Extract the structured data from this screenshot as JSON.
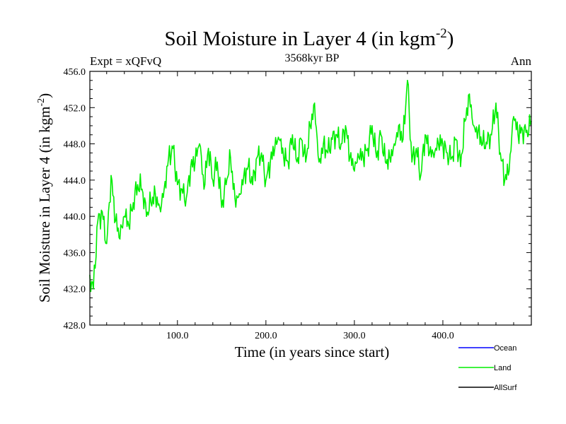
{
  "chart_data": {
    "type": "line",
    "title_main": "Soil Moisture in Layer 4 (in kgm",
    "title_sup": "-2",
    "title_close": ")",
    "subtitle": "3568kyr BP",
    "left_label": "Expt = xQFvQ",
    "right_label": "Ann",
    "xlabel": "Time (in years since start)",
    "ylabel_main": "Soil Moisture in Layer 4 (in kgm",
    "ylabel_sup": "-2",
    "ylabel_close": ")",
    "xlim": [
      1,
      500
    ],
    "ylim": [
      428,
      456
    ],
    "x_ticks": [
      100,
      200,
      300,
      400
    ],
    "x_tick_labels": [
      "100.0",
      "200.0",
      "300.0",
      "400.0"
    ],
    "y_ticks": [
      428,
      432,
      436,
      440,
      444,
      448,
      452,
      456
    ],
    "y_tick_labels": [
      "428.0",
      "432.0",
      "436.0",
      "440.0",
      "444.0",
      "448.0",
      "452.0",
      "456.0"
    ],
    "legend": [
      {
        "name": "Ocean",
        "color": "#0000ff"
      },
      {
        "name": "Land",
        "color": "#00ee00"
      },
      {
        "name": "AllSurf",
        "color": "#000000"
      }
    ],
    "series": [
      {
        "name": "Land",
        "color": "#00ee00",
        "x": [
          1,
          5,
          10,
          15,
          20,
          25,
          30,
          35,
          40,
          45,
          50,
          55,
          60,
          65,
          70,
          75,
          80,
          85,
          90,
          95,
          100,
          105,
          110,
          115,
          120,
          125,
          130,
          135,
          140,
          145,
          150,
          155,
          160,
          165,
          170,
          175,
          180,
          185,
          190,
          195,
          200,
          205,
          210,
          215,
          220,
          225,
          230,
          235,
          240,
          245,
          250,
          255,
          260,
          265,
          270,
          275,
          280,
          285,
          290,
          295,
          300,
          305,
          310,
          315,
          320,
          325,
          330,
          335,
          340,
          345,
          350,
          355,
          360,
          365,
          370,
          375,
          380,
          385,
          390,
          395,
          400,
          405,
          410,
          415,
          420,
          425,
          430,
          435,
          440,
          445,
          450,
          455,
          460,
          465,
          470,
          475,
          480,
          485,
          490,
          495,
          500
        ],
        "values": [
          433.5,
          432.0,
          439.5,
          440.5,
          437.0,
          444.5,
          439.5,
          437.5,
          440.0,
          439.0,
          441.5,
          443.5,
          443.0,
          440.0,
          441.5,
          442.5,
          441.0,
          443.0,
          446.5,
          447.5,
          443.5,
          443.0,
          442.0,
          445.5,
          446.0,
          448.0,
          443.0,
          447.5,
          444.0,
          446.0,
          441.0,
          443.5,
          446.5,
          442.0,
          442.5,
          444.5,
          445.5,
          443.5,
          446.5,
          447.0,
          444.0,
          446.0,
          447.5,
          448.5,
          446.5,
          446.0,
          449.0,
          446.0,
          448.5,
          446.0,
          450.0,
          452.5,
          446.0,
          448.0,
          447.0,
          448.5,
          449.0,
          448.0,
          450.0,
          446.5,
          445.0,
          446.5,
          446.5,
          447.5,
          450.0,
          446.5,
          449.0,
          446.0,
          446.5,
          448.0,
          450.0,
          448.5,
          455.0,
          446.0,
          447.5,
          444.5,
          449.0,
          447.0,
          446.5,
          448.0,
          448.0,
          447.0,
          446.5,
          448.5,
          445.5,
          450.5,
          453.5,
          450.0,
          449.5,
          448.0,
          448.0,
          449.0,
          452.5,
          447.0,
          444.0,
          445.0,
          451.0,
          449.0,
          449.5,
          449.5,
          450.5
        ]
      }
    ]
  }
}
